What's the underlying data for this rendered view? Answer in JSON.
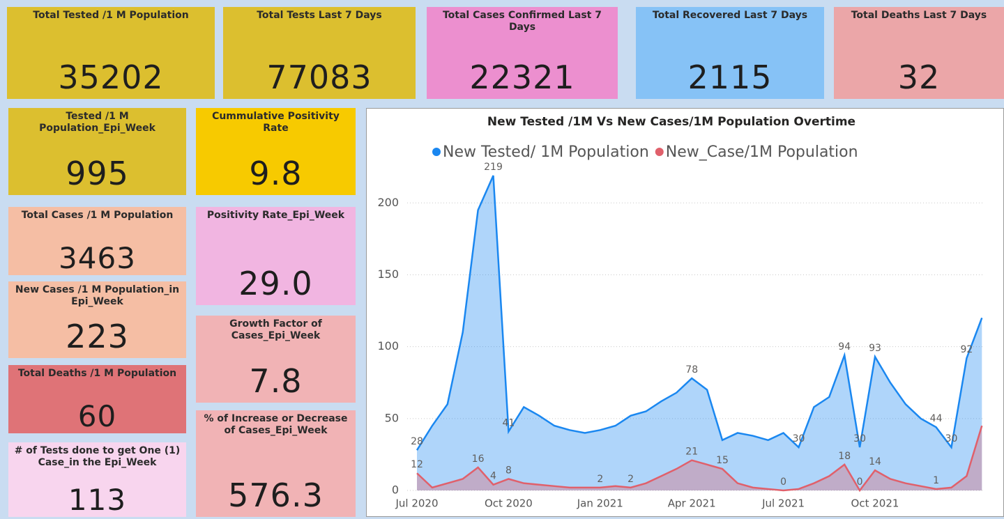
{
  "cards": [
    {
      "title": "Total Tested /1 M Population",
      "value": "35202"
    },
    {
      "title": "Total Tests Last 7 Days",
      "value": "77083"
    },
    {
      "title": "Total Cases Confirmed Last 7 Days",
      "value": "22321"
    },
    {
      "title": "Total Recovered Last 7 Days",
      "value": "2115"
    },
    {
      "title": "Total Deaths Last 7 Days",
      "value": "32"
    },
    {
      "title": "Tested /1 M Population_Epi_Week",
      "value": "995"
    },
    {
      "title": "Cummulative Positivity Rate",
      "value": "9.8"
    },
    {
      "title": "Total Cases /1 M Population",
      "value": "3463"
    },
    {
      "title": "Positivity Rate_Epi_Week",
      "value": "29.0"
    },
    {
      "title": "New Cases /1 M Population_in Epi_Week",
      "value": "223"
    },
    {
      "title": "Growth Factor of Cases_Epi_Week",
      "value": "7.8"
    },
    {
      "title": "Total Deaths /1 M Population",
      "value": "60"
    },
    {
      "title": "% of Increase or Decrease of Cases_Epi_Week",
      "value": "576.3"
    },
    {
      "title": "# of Tests done to get One (1) Case_in the Epi_Week",
      "value": "113"
    }
  ],
  "chart_data": {
    "type": "area",
    "title": "New Tested /1M Vs New Cases/1M Population Overtime",
    "categories": [
      "Jul 2020",
      null,
      null,
      null,
      null,
      null,
      "Oct 2020",
      null,
      null,
      null,
      null,
      null,
      "Jan 2021",
      null,
      null,
      null,
      null,
      null,
      "Apr 2021",
      null,
      null,
      null,
      null,
      null,
      "Jul 2021",
      null,
      null,
      null,
      null,
      null,
      "Oct 2021",
      null,
      null,
      null,
      null,
      null,
      null,
      null
    ],
    "series": [
      {
        "name": "New Tested/ 1M Population",
        "color": "#1a87f0",
        "values": [
          28,
          45,
          60,
          110,
          195,
          219,
          41,
          58,
          52,
          45,
          42,
          40,
          42,
          45,
          52,
          55,
          62,
          68,
          78,
          70,
          35,
          40,
          38,
          35,
          40,
          30,
          58,
          65,
          94,
          30,
          93,
          75,
          60,
          50,
          44,
          30,
          92,
          120
        ],
        "value_labels": [
          "28",
          null,
          null,
          null,
          null,
          "219",
          "41",
          null,
          null,
          null,
          null,
          null,
          null,
          null,
          null,
          null,
          null,
          null,
          "78",
          null,
          null,
          null,
          null,
          null,
          null,
          "30",
          null,
          null,
          "94",
          "30",
          "93",
          null,
          null,
          null,
          "44",
          "30",
          "92",
          null
        ]
      },
      {
        "name": "New_Case/1M Population",
        "color": "#e0606b",
        "values": [
          12,
          2,
          5,
          8,
          16,
          4,
          8,
          5,
          4,
          3,
          2,
          2,
          2,
          3,
          2,
          5,
          10,
          15,
          21,
          18,
          15,
          5,
          2,
          1,
          0,
          1,
          5,
          10,
          18,
          0,
          14,
          8,
          5,
          3,
          1,
          2,
          10,
          45
        ],
        "value_labels": [
          "12",
          null,
          null,
          null,
          "16",
          "4",
          "8",
          null,
          null,
          null,
          null,
          null,
          "2",
          null,
          "2",
          null,
          null,
          null,
          "21",
          null,
          "15",
          null,
          null,
          null,
          "0",
          null,
          null,
          null,
          "18",
          "0",
          "14",
          null,
          null,
          null,
          "1",
          null,
          null,
          null
        ]
      }
    ],
    "ylim": [
      0,
      220
    ],
    "yticks": [
      0,
      50,
      100,
      150,
      200
    ],
    "grid": true,
    "legend": "top"
  }
}
